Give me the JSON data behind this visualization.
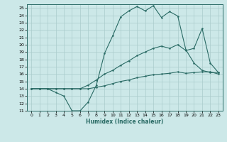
{
  "xlabel": "Humidex (Indice chaleur)",
  "bg_color": "#cce8e8",
  "grid_color": "#aacccc",
  "line_color": "#2a6b65",
  "xlim": [
    -0.5,
    23.5
  ],
  "ylim": [
    11,
    25.5
  ],
  "line1_x": [
    0,
    1,
    2,
    3,
    4,
    5,
    6,
    7,
    8,
    9,
    10,
    11,
    12,
    13,
    14,
    15,
    16,
    17,
    18,
    19,
    20,
    21,
    22,
    23
  ],
  "line1_y": [
    14,
    14,
    14,
    13.5,
    13,
    11,
    11,
    12.2,
    14.5,
    18.8,
    21.2,
    23.8,
    24.6,
    25.2,
    24.6,
    25.3,
    23.7,
    24.5,
    23.9,
    19.3,
    17.5,
    16.5,
    16.2,
    16.2
  ],
  "line2_x": [
    0,
    1,
    2,
    3,
    4,
    5,
    6,
    7,
    8,
    9,
    10,
    11,
    12,
    13,
    14,
    15,
    16,
    17,
    18,
    19,
    20,
    21,
    22,
    23
  ],
  "line2_y": [
    14,
    14,
    14,
    14,
    14,
    14,
    14,
    14.5,
    15.2,
    16.0,
    16.5,
    17.2,
    17.8,
    18.5,
    19.0,
    19.5,
    19.8,
    19.5,
    20.0,
    19.2,
    19.5,
    22.2,
    17.5,
    16.2
  ],
  "line3_x": [
    0,
    1,
    2,
    3,
    4,
    5,
    6,
    7,
    8,
    9,
    10,
    11,
    12,
    13,
    14,
    15,
    16,
    17,
    18,
    19,
    20,
    21,
    22,
    23
  ],
  "line3_y": [
    14,
    14,
    14,
    14,
    14,
    14,
    14,
    14,
    14.2,
    14.4,
    14.7,
    15.0,
    15.2,
    15.5,
    15.7,
    15.9,
    16.0,
    16.1,
    16.3,
    16.1,
    16.2,
    16.3,
    16.3,
    16.0
  ]
}
